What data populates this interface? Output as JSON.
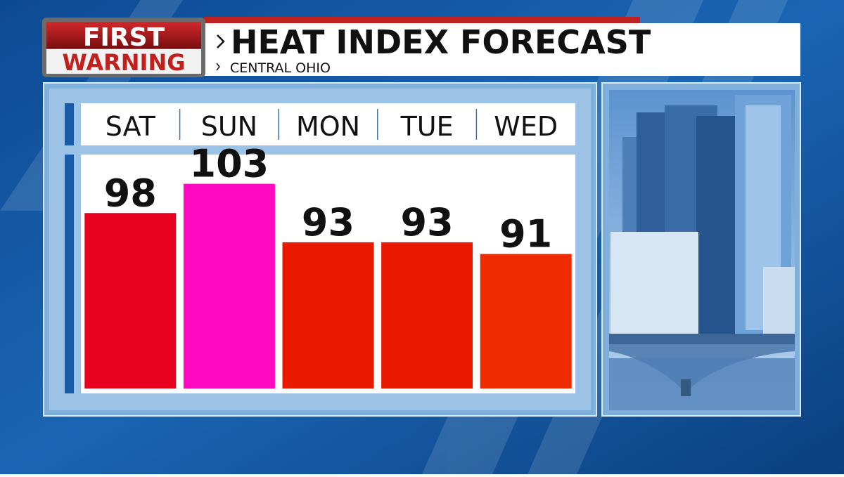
{
  "logo": {
    "line1": "FIRST",
    "line2": "WARNING"
  },
  "chart_data": {
    "type": "bar",
    "title": "HEAT INDEX FORECAST",
    "subtitle": "CENTRAL OHIO",
    "categories": [
      "SAT",
      "SUN",
      "MON",
      "TUE",
      "WED"
    ],
    "values": [
      98,
      103,
      93,
      93,
      91
    ],
    "colors": [
      "#e8001f",
      "#ff0ac0",
      "#ea1a00",
      "#ea1a00",
      "#ee2a00"
    ],
    "ylim": [
      68,
      108
    ]
  }
}
